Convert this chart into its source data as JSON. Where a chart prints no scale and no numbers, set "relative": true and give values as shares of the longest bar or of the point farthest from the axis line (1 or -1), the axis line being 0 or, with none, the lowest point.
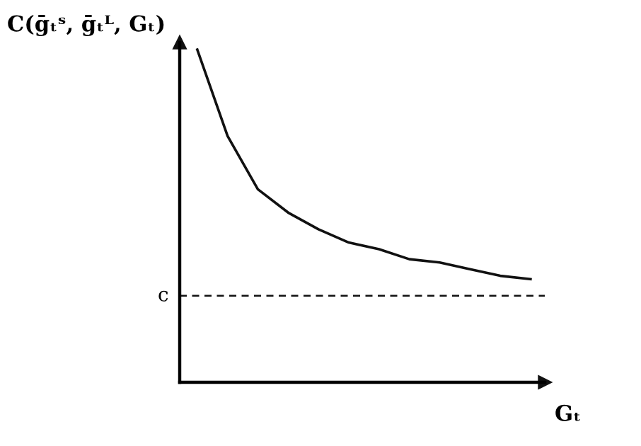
{
  "chart_data": {
    "type": "line",
    "relative": true,
    "ylabel": "C(ḡₜˢ, ḡₜᴸ, Gₜ)",
    "xlabel": "Gₜ",
    "categories": [
      null,
      null,
      null,
      null,
      null,
      null,
      null,
      null,
      null,
      null,
      null,
      null
    ],
    "series": [
      {
        "color": "#111111",
        "values": [
          1.0,
          0.74,
          0.58,
          0.51,
          0.46,
          0.42,
          0.4,
          0.37,
          0.36,
          0.34,
          0.32,
          0.31
        ]
      }
    ],
    "ref_lines": [
      {
        "axis": "y",
        "value": 0.26,
        "label": "c",
        "color": "#111111",
        "line_style": "dashed"
      }
    ],
    "grid": false,
    "legend": false,
    "marker": "none",
    "line_style": "solid"
  }
}
